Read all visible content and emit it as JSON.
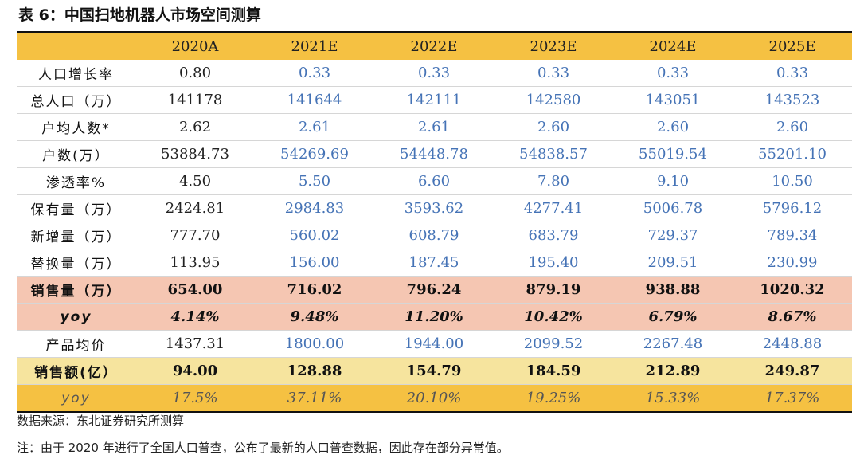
{
  "title": "表 6：中国扫地机器人市场空间测算",
  "header": [
    "",
    "2020A",
    "2021E",
    "2022E",
    "2023E",
    "2024E",
    "2025E"
  ],
  "rows": [
    [
      "人口增长率",
      "0.80",
      "0.33",
      "0.33",
      "0.33",
      "0.33",
      "0.33"
    ],
    [
      "总人口（万）",
      "141178",
      "141644",
      "142111",
      "142580",
      "143051",
      "143523"
    ],
    [
      "户均人数*",
      "2.62",
      "2.61",
      "2.61",
      "2.60",
      "2.60",
      "2.60"
    ],
    [
      "户数(万）",
      "53884.73",
      "54269.69",
      "54448.78",
      "54838.57",
      "55019.54",
      "55201.10"
    ],
    [
      "渗透率%",
      "4.50",
      "5.50",
      "6.60",
      "7.80",
      "9.10",
      "10.50"
    ],
    [
      "保有量（万）",
      "2424.81",
      "2984.83",
      "3593.62",
      "4277.41",
      "5006.78",
      "5796.12"
    ],
    [
      "新增量（万）",
      "777.70",
      "560.02",
      "608.79",
      "683.79",
      "729.37",
      "789.34"
    ],
    [
      "替换量（万）",
      "113.95",
      "156.00",
      "187.45",
      "195.40",
      "209.51",
      "230.99"
    ],
    [
      "销售量（万）",
      "654.00",
      "716.02",
      "796.24",
      "879.19",
      "938.88",
      "1020.32"
    ],
    [
      "yoy",
      "4.14%",
      "9.48%",
      "11.20%",
      "10.42%",
      "6.79%",
      "8.67%"
    ],
    [
      "产品均价",
      "1437.31",
      "1800.00",
      "1944.00",
      "2099.52",
      "2267.48",
      "2448.88"
    ],
    [
      "销售额(亿）",
      "94.00",
      "128.88",
      "154.79",
      "184.59",
      "212.89",
      "249.87"
    ],
    [
      "yoy",
      "17.5%",
      "37.11%",
      "20.10%",
      "19.25%",
      "15.33%",
      "17.37%"
    ]
  ],
  "row_styles": [
    "plain",
    "plain",
    "plain",
    "plain",
    "plain",
    "plain",
    "plain",
    "plain",
    "pink",
    "pink ital",
    "plain",
    "ylw",
    "gold"
  ],
  "source": "数据来源：东北证券研究所测算",
  "note": "注：由于 2020 年进行了全国人口普查，公布了最新的人口普查数据，因此存在部分异常值。",
  "colors": {
    "header_bg": "#f5c142",
    "highlight_pink": "#f5c6b2",
    "highlight_yellow": "#f6e49e",
    "projection_blue": "#4573b6"
  }
}
